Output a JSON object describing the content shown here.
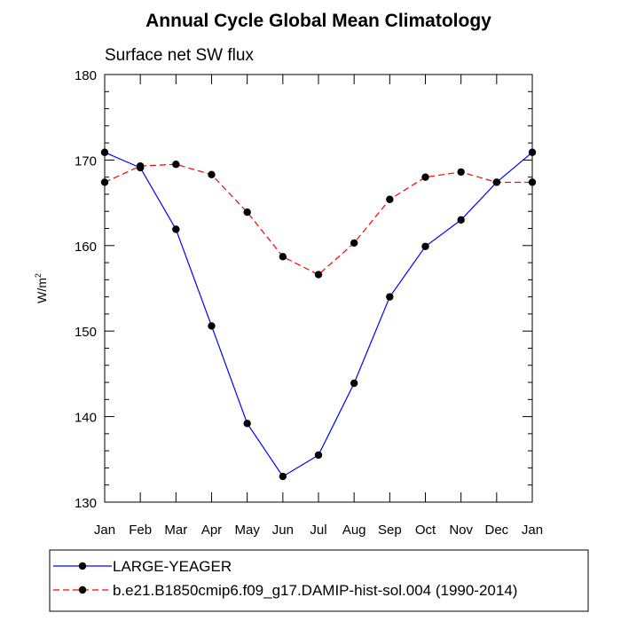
{
  "chart_data": {
    "type": "line",
    "title": "Annual Cycle Global Mean Climatology",
    "subtitle": "Surface net SW flux",
    "ylabel": "W/m",
    "ylabel_superscript": "2",
    "categories": [
      "Jan",
      "Feb",
      "Mar",
      "Apr",
      "May",
      "Jun",
      "Jul",
      "Aug",
      "Sep",
      "Oct",
      "Nov",
      "Dec",
      "Jan"
    ],
    "ylim": [
      130,
      180
    ],
    "yticks": [
      130,
      140,
      150,
      160,
      170,
      180
    ],
    "grid": false,
    "legend_position": "bottom",
    "series": [
      {
        "name": "LARGE-YEAGER",
        "color": "#0000ff",
        "line_style": "solid",
        "marker": "filled-circle",
        "values": [
          170.9,
          169.1,
          161.9,
          150.6,
          139.2,
          133.0,
          135.5,
          143.9,
          154.0,
          159.9,
          163.0,
          167.4,
          170.9
        ]
      },
      {
        "name": "b.e21.B1850cmip6.f09_g17.DAMIP-hist-sol.004 (1990-2014)",
        "color": "#ff0000",
        "line_style": "dashed",
        "marker": "filled-circle",
        "values": [
          167.4,
          169.3,
          169.5,
          168.3,
          163.9,
          158.7,
          156.6,
          160.3,
          165.4,
          168.0,
          168.6,
          167.4,
          167.4
        ]
      }
    ]
  }
}
